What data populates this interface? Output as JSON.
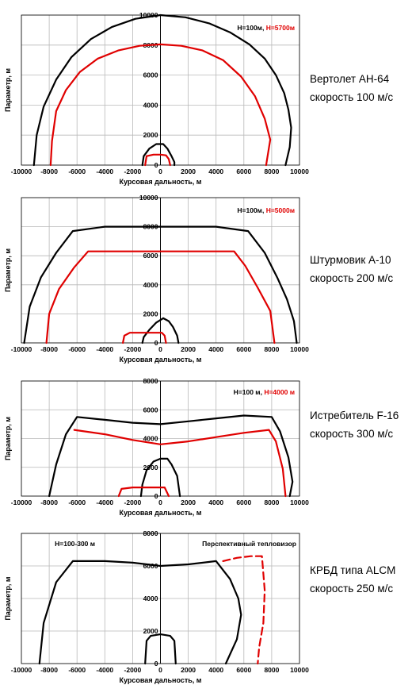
{
  "chart_data": [
    {
      "type": "line",
      "xlabel": "Курсовая дальность, м",
      "ylabel": "Параметр, м",
      "xlim": [
        -10000,
        10000
      ],
      "ylim": [
        0,
        10000
      ],
      "xticks": [
        -10000,
        -8000,
        -6000,
        -4000,
        -2000,
        0,
        2000,
        4000,
        6000,
        8000,
        10000
      ],
      "yticks": [
        0,
        2000,
        4000,
        6000,
        8000,
        10000
      ],
      "grid": true,
      "legend": {
        "position": "top-right",
        "parts": [
          {
            "text": "H=100м, ",
            "color": "#000000"
          },
          {
            "text": "H=5700м",
            "color": "#e00000"
          }
        ]
      },
      "side_label": [
        "Вертолет АН-64",
        "скорость 100 м/с"
      ],
      "series": [
        {
          "color": "#000000",
          "dash": false,
          "x": [
            -9100,
            -8900,
            -8400,
            -7500,
            -6400,
            -5000,
            -3500,
            -1800,
            0,
            1800,
            3500,
            5000,
            6400,
            7500,
            8300,
            8900,
            9200,
            9400,
            9300,
            9000
          ],
          "y": [
            0,
            2000,
            3900,
            5700,
            7200,
            8400,
            9200,
            9750,
            10000,
            9850,
            9450,
            8850,
            8050,
            7100,
            6000,
            4800,
            3700,
            2500,
            1200,
            0
          ]
        },
        {
          "color": "#e00000",
          "dash": false,
          "x": [
            -7900,
            -7800,
            -7500,
            -6800,
            -5800,
            -4500,
            -3000,
            -1500,
            0,
            1500,
            3000,
            4500,
            5800,
            6800,
            7500,
            7900,
            7600
          ],
          "y": [
            0,
            1600,
            3600,
            5000,
            6200,
            7100,
            7650,
            7950,
            8050,
            7950,
            7650,
            7000,
            5900,
            4600,
            3100,
            1700,
            0
          ]
        },
        {
          "color": "#000000",
          "dash": false,
          "x": [
            -1300,
            -1200,
            -800,
            -300,
            200,
            500,
            800,
            1000,
            1000
          ],
          "y": [
            0,
            600,
            1100,
            1400,
            1400,
            1100,
            600,
            200,
            0
          ]
        },
        {
          "color": "#e00000",
          "dash": false,
          "x": [
            -1100,
            -1000,
            -500,
            0,
            400,
            600,
            700
          ],
          "y": [
            0,
            600,
            700,
            700,
            650,
            400,
            0
          ]
        }
      ]
    },
    {
      "type": "line",
      "xlabel": "Курсовая дальность, м",
      "ylabel": "Параметр, м",
      "xlim": [
        -10000,
        10000
      ],
      "ylim": [
        0,
        10000
      ],
      "xticks": [
        -10000,
        -8000,
        -6000,
        -4000,
        -2000,
        0,
        2000,
        4000,
        6000,
        8000,
        10000
      ],
      "yticks": [
        0,
        2000,
        4000,
        6000,
        8000,
        10000
      ],
      "grid": true,
      "legend": {
        "position": "top-right",
        "parts": [
          {
            "text": "H=100м, ",
            "color": "#000000"
          },
          {
            "text": "H=5000м",
            "color": "#e00000"
          }
        ]
      },
      "side_label": [
        "Штурмовик А-10",
        "скорость 200 м/с"
      ],
      "series": [
        {
          "color": "#000000",
          "dash": false,
          "x": [
            -9800,
            -9400,
            -8600,
            -7500,
            -6300,
            -4000,
            0,
            4000,
            6300,
            7500,
            8400,
            9100,
            9600,
            9800
          ],
          "y": [
            0,
            2500,
            4500,
            6200,
            7700,
            8000,
            8000,
            8000,
            7700,
            6200,
            4500,
            3000,
            1500,
            0
          ]
        },
        {
          "color": "#e00000",
          "dash": false,
          "x": [
            -8200,
            -8000,
            -7300,
            -6200,
            -5200,
            0,
            5300,
            6100,
            7000,
            7900,
            8200
          ],
          "y": [
            0,
            2000,
            3700,
            5200,
            6300,
            6300,
            6300,
            5300,
            3800,
            2200,
            0
          ]
        },
        {
          "color": "#000000",
          "dash": false,
          "x": [
            -1300,
            -1200,
            -800,
            -300,
            200,
            600,
            900,
            1200,
            1300
          ],
          "y": [
            0,
            400,
            900,
            1400,
            1700,
            1500,
            1100,
            500,
            0
          ]
        },
        {
          "color": "#e00000",
          "dash": false,
          "x": [
            -2700,
            -2600,
            -2200,
            -1000,
            100,
            300,
            400
          ],
          "y": [
            0,
            500,
            700,
            700,
            700,
            500,
            0
          ]
        }
      ]
    },
    {
      "type": "line",
      "xlabel": "Курсовая дальность, м",
      "ylabel": "Параметр, м",
      "xlim": [
        -10000,
        10000
      ],
      "ylim": [
        0,
        8000
      ],
      "xticks": [
        -10000,
        -8000,
        -6000,
        -4000,
        -2000,
        0,
        2000,
        4000,
        6000,
        8000,
        10000
      ],
      "yticks": [
        0,
        2000,
        4000,
        6000,
        8000
      ],
      "grid": true,
      "legend": {
        "position": "top-right",
        "parts": [
          {
            "text": "H=100 м, ",
            "color": "#000000"
          },
          {
            "text": "H=4000 м",
            "color": "#e00000"
          }
        ]
      },
      "side_label": [
        "Истребитель F-16",
        "скорость 300 м/с"
      ],
      "series": [
        {
          "color": "#000000",
          "dash": false,
          "x": [
            -8000,
            -7500,
            -6800,
            -6000,
            -4000,
            -2000,
            0,
            2000,
            4000,
            6000,
            8000,
            8600,
            9200,
            9500,
            9300
          ],
          "y": [
            0,
            2200,
            4300,
            5500,
            5300,
            5100,
            5000,
            5200,
            5400,
            5600,
            5500,
            4500,
            2700,
            1000,
            0
          ]
        },
        {
          "color": "#e00000",
          "dash": false,
          "x": [
            -6200,
            -4000,
            -2000,
            0,
            2000,
            4000,
            6000,
            7800,
            8300,
            8800,
            9000
          ],
          "y": [
            4600,
            4300,
            3900,
            3600,
            3800,
            4100,
            4400,
            4600,
            3800,
            1900,
            0
          ]
        },
        {
          "color": "#000000",
          "dash": false,
          "x": [
            -1400,
            -1300,
            -1000,
            -500,
            0,
            500,
            800,
            1200,
            1400
          ],
          "y": [
            0,
            800,
            1800,
            2400,
            2600,
            2600,
            2200,
            1400,
            0
          ]
        },
        {
          "color": "#e00000",
          "dash": false,
          "x": [
            -3000,
            -2800,
            -2000,
            -500,
            300,
            600
          ],
          "y": [
            0,
            500,
            600,
            600,
            600,
            0
          ]
        }
      ]
    },
    {
      "type": "line",
      "xlabel": "Курсовая дальность, м",
      "ylabel": "Параметр, м",
      "xlim": [
        -10000,
        10000
      ],
      "ylim": [
        0,
        8000
      ],
      "xticks": [
        -10000,
        -8000,
        -6000,
        -4000,
        -2000,
        0,
        2000,
        4000,
        6000,
        8000,
        10000
      ],
      "yticks": [
        0,
        2000,
        4000,
        6000,
        8000
      ],
      "grid": true,
      "legend": {
        "position": "top-left",
        "parts": [
          {
            "text": "H=100-300 м",
            "color": "#000000"
          }
        ]
      },
      "annotation": {
        "text": "Перспективный тепловизор",
        "color": "#000000"
      },
      "side_label": [
        "КРБД типа ALCM",
        "скорость 250 м/с"
      ],
      "series": [
        {
          "color": "#000000",
          "dash": false,
          "x": [
            -8700,
            -8400,
            -7500,
            -6300,
            -4000,
            -2000,
            0,
            2000,
            4000,
            5000,
            5600,
            5800,
            5500,
            4700
          ],
          "y": [
            0,
            2500,
            5000,
            6300,
            6300,
            6200,
            6000,
            6100,
            6300,
            5200,
            4000,
            3000,
            1500,
            0
          ]
        },
        {
          "color": "#e00000",
          "dash": true,
          "x": [
            4500,
            5500,
            6500,
            7300,
            7500,
            7400,
            7100,
            7000
          ],
          "y": [
            6300,
            6500,
            6600,
            6600,
            4500,
            2500,
            1000,
            0
          ]
        },
        {
          "color": "#000000",
          "dash": false,
          "x": [
            -1100,
            -1000,
            -700,
            0,
            700,
            1000,
            1100
          ],
          "y": [
            0,
            1400,
            1700,
            1800,
            1700,
            1400,
            0
          ]
        }
      ]
    }
  ]
}
